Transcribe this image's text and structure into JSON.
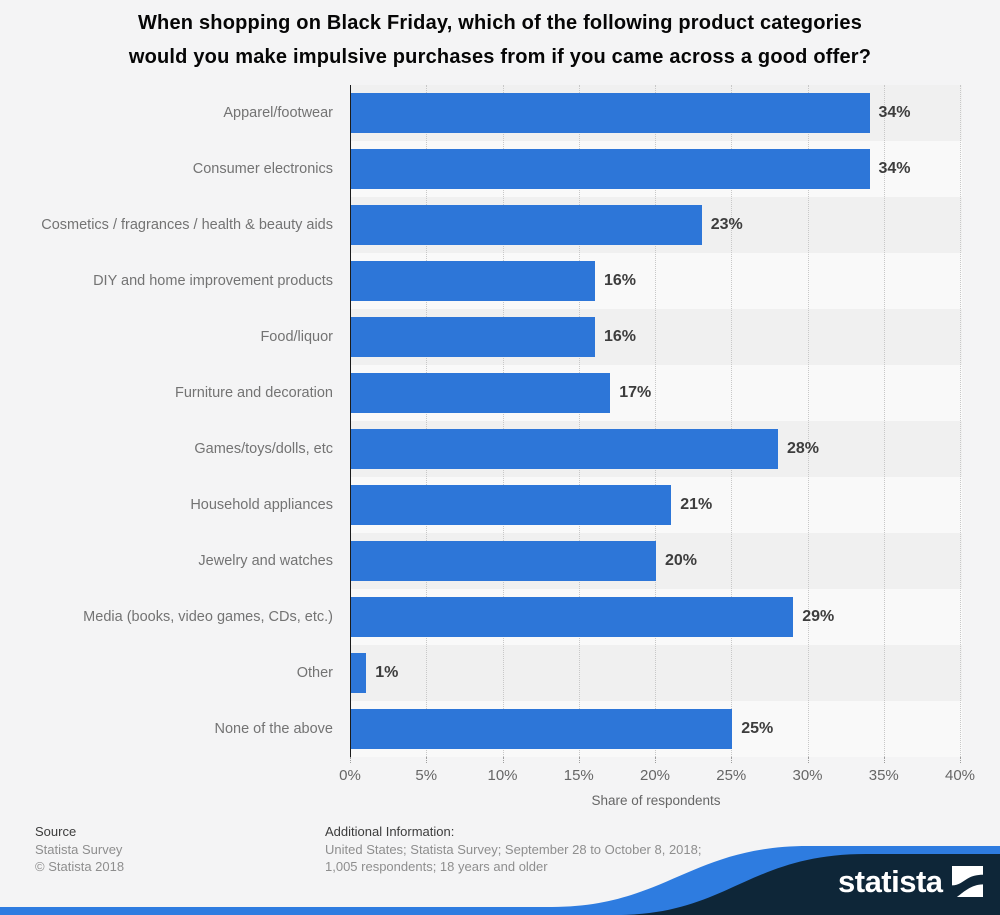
{
  "page": {
    "title_lines": [
      "When shopping on Black Friday, which of the following product categories",
      "would you make impulsive purchases from if you came across a good offer?"
    ]
  },
  "chart_data": {
    "type": "bar",
    "orientation": "horizontal",
    "title": "When shopping on Black Friday, which of the following product categories would you make impulsive purchases from if you came across a good offer?",
    "categories": [
      "Apparel/footwear",
      "Consumer electronics",
      "Cosmetics / fragrances / health & beauty aids",
      "DIY and home improvement products",
      "Food/liquor",
      "Furniture and decoration",
      "Games/toys/dolls, etc",
      "Household appliances",
      "Jewelry and watches",
      "Media (books, video games, CDs, etc.)",
      "Other",
      "None of the above"
    ],
    "values": [
      34,
      34,
      23,
      16,
      16,
      17,
      28,
      21,
      20,
      29,
      1,
      25
    ],
    "value_labels": [
      "34%",
      "34%",
      "23%",
      "16%",
      "16%",
      "17%",
      "28%",
      "21%",
      "20%",
      "29%",
      "1%",
      "25%"
    ],
    "xlabel": "Share of respondents",
    "xlim": [
      0,
      40
    ],
    "xticks": [
      "0%",
      "5%",
      "10%",
      "15%",
      "20%",
      "25%",
      "30%",
      "35%",
      "40%"
    ],
    "grid": "vertical dotted gridlines, zebra row stripes",
    "legend": "none",
    "bar_color": "#2d76d8"
  },
  "footer": {
    "source_heading": "Source",
    "source_name": "Statista Survey",
    "copyright": "©  Statista 2018",
    "additional_heading": "Additional Information:",
    "additional_line1": "United States; Statista Survey; September 28 to October 8, 2018;",
    "additional_line2": "1,005 respondents; 18 years and older"
  },
  "branding": {
    "logo_text": "statista",
    "logo_icon": "statista-square-wave-icon",
    "navy_color": "#0e2638",
    "wave_blue_color": "#2e7ce0"
  }
}
